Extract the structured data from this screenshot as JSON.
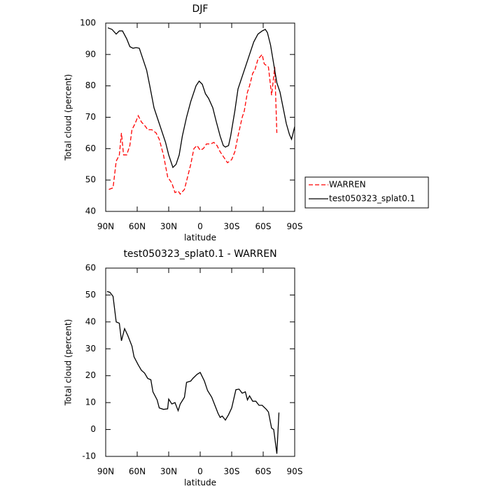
{
  "chart_data": [
    {
      "type": "line",
      "title": "DJF",
      "xlabel": "latitude",
      "ylabel": "Total cloud (percent)",
      "xlim": [
        90,
        -90
      ],
      "xticks": [
        {
          "value": 90,
          "label": "90N"
        },
        {
          "value": 60,
          "label": "60N"
        },
        {
          "value": 30,
          "label": "30N"
        },
        0,
        {
          "value": -30,
          "label": "30S"
        },
        {
          "value": -60,
          "label": "60S"
        },
        {
          "value": -90,
          "label": "90S"
        }
      ],
      "ylim": [
        40,
        100
      ],
      "yticks": [
        40,
        50,
        60,
        70,
        80,
        90,
        100
      ],
      "legend": "right",
      "series": [
        {
          "name": "WARREN",
          "color": "#ff0000",
          "line_style": "dashed",
          "x": [
            87,
            83,
            80,
            77,
            75,
            73,
            70,
            67,
            65,
            62,
            59,
            56,
            52,
            50,
            46,
            42,
            39,
            35,
            31,
            27,
            24,
            21,
            19,
            15,
            12,
            9,
            6,
            3,
            0,
            -3,
            -6,
            -10,
            -13,
            -16,
            -19,
            -23,
            -26,
            -30,
            -33,
            -36,
            -40,
            -42,
            -45,
            -47,
            -50,
            -52,
            -55,
            -59,
            -61,
            -65,
            -68,
            -71,
            -73
          ],
          "values": [
            47,
            47.5,
            56,
            58,
            65,
            58,
            58,
            61,
            66,
            68,
            70.5,
            68.5,
            67,
            66,
            66,
            65,
            63,
            58,
            51,
            49,
            46,
            46.5,
            45.5,
            47,
            51,
            55,
            60,
            61,
            59.5,
            60,
            61.5,
            61.5,
            62,
            61,
            59,
            57,
            55.5,
            56.5,
            59,
            64,
            70,
            72,
            78,
            80,
            84,
            85,
            88.5,
            90,
            87,
            86,
            77,
            86,
            65
          ]
        },
        {
          "name": "test050323_splat0.1",
          "color": "#000000",
          "line_style": "solid",
          "x": [
            88,
            84,
            80,
            77,
            74,
            70,
            67,
            64,
            61,
            58,
            55,
            51,
            48,
            44,
            41,
            37,
            33,
            30,
            26,
            23,
            20,
            17,
            13,
            9,
            4,
            1,
            -2,
            -5,
            -8,
            -12,
            -15,
            -19,
            -22,
            -24,
            -27,
            -29,
            -33,
            -36,
            -40,
            -44,
            -48,
            -51,
            -55,
            -59,
            -62,
            -64,
            -67,
            -70,
            -73,
            -76,
            -79,
            -82,
            -85,
            -87,
            -90
          ],
          "values": [
            98.5,
            98,
            96.5,
            97.5,
            97.5,
            95,
            92.5,
            92,
            92.2,
            92,
            89,
            85,
            80,
            73,
            70,
            66,
            62,
            58,
            54,
            55,
            58,
            64,
            70,
            75,
            80,
            81.5,
            80.5,
            77.5,
            76,
            73,
            69,
            64,
            61,
            60.5,
            61,
            64,
            72,
            79,
            83,
            87,
            91,
            94,
            96.5,
            97.5,
            98,
            97,
            93,
            87,
            81,
            78,
            73,
            68,
            64.5,
            63,
            67
          ]
        }
      ]
    },
    {
      "type": "line",
      "title": "test050323_splat0.1 - WARREN",
      "xlabel": "latitude",
      "ylabel": "Total cloud (percent)",
      "xlim": [
        90,
        -90
      ],
      "xticks": [
        {
          "value": 90,
          "label": "90N"
        },
        {
          "value": 60,
          "label": "60N"
        },
        {
          "value": 30,
          "label": "30N"
        },
        0,
        {
          "value": -30,
          "label": "30S"
        },
        {
          "value": -60,
          "label": "60S"
        },
        {
          "value": -90,
          "label": "90S"
        }
      ],
      "ylim": [
        -10,
        60
      ],
      "yticks": [
        -10,
        0,
        10,
        20,
        30,
        40,
        50,
        60
      ],
      "series": [
        {
          "color": "#000000",
          "line_style": "solid",
          "x": [
            88.7,
            86,
            83,
            80,
            77,
            75,
            72,
            69,
            65,
            63,
            59,
            56,
            53,
            50,
            47,
            45,
            41,
            39,
            35,
            31,
            30,
            27,
            24,
            21,
            19,
            15,
            13,
            9,
            7,
            3,
            0,
            -4,
            -7,
            -11,
            -14,
            -17,
            -19,
            -21,
            -24,
            -27,
            -30,
            -34,
            -37,
            -40,
            -43,
            -45,
            -47,
            -50,
            -53,
            -56,
            -59,
            -63,
            -65,
            -68,
            -70,
            -73,
            -75
          ],
          "values": [
            51.3,
            51,
            49.5,
            40,
            39.5,
            33,
            37.5,
            35,
            31,
            27,
            24,
            22,
            21,
            19,
            18.5,
            14,
            11,
            8,
            7.5,
            7.7,
            11.3,
            9.5,
            10,
            7,
            9.5,
            12,
            17.5,
            18,
            19,
            20.5,
            21.2,
            18,
            14.5,
            12,
            9,
            6,
            4.5,
            5,
            3.5,
            5.5,
            8,
            14.8,
            15,
            13.5,
            14,
            11,
            12.5,
            10.5,
            10.5,
            9,
            9,
            7.5,
            6.5,
            0.5,
            0,
            -9,
            6.3
          ]
        }
      ]
    }
  ]
}
